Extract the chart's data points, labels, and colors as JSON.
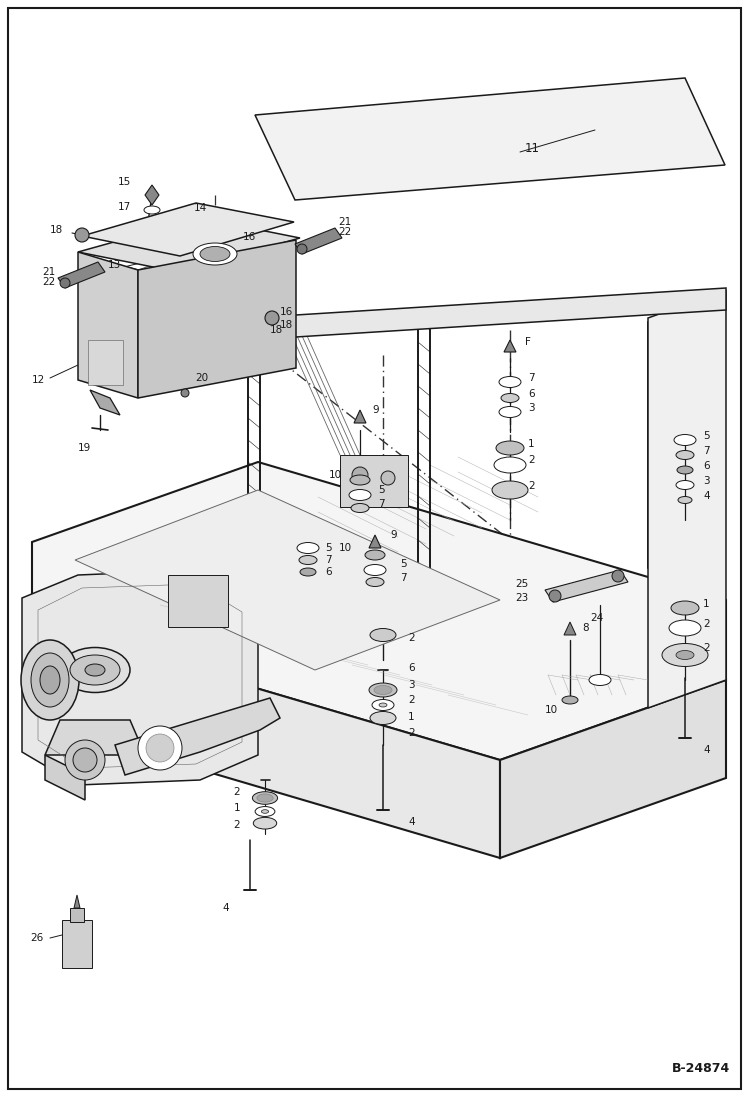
{
  "figure_width": 7.49,
  "figure_height": 10.97,
  "dpi": 100,
  "background_color": "#ffffff",
  "border_color": "#000000",
  "border_linewidth": 1.5,
  "diagram_code": "B-24874",
  "line_color": "#1a1a1a",
  "lw_main": 1.1,
  "lw_thick": 1.5,
  "lw_thin": 0.7,
  "lw_xtra_thin": 0.4,
  "label_fontsize": 7.5,
  "code_fontsize": 9
}
